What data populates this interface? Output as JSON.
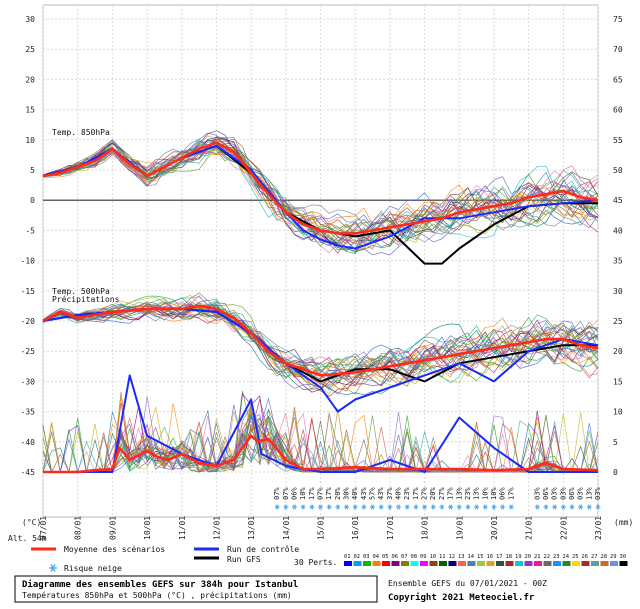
{
  "chart_data": [
    {
      "type": "line",
      "title": "Diagramme des ensembles GEFS sur 384h pour Istanbul",
      "subtitle": "Températures 850hPa et 500hPa (°C) , précipitations (mm)",
      "run": "Ensemble GEFS du 07/01/2021 - 00Z",
      "copyright": "Copyright 2021 Meteociel.fr",
      "left_axis": {
        "label": "(°C)",
        "ticks": [
          30,
          25,
          20,
          15,
          10,
          5,
          0,
          -5,
          -10,
          -15,
          -20,
          -25,
          -30,
          -35,
          -40,
          -45
        ],
        "range": [
          -45,
          30
        ]
      },
      "right_axis": {
        "label": "(mm)",
        "ticks": [
          75,
          70,
          65,
          60,
          55,
          50,
          45,
          40,
          35,
          30,
          25,
          20,
          15,
          10,
          5,
          0
        ],
        "range": [
          0,
          75
        ]
      },
      "x_ticks": [
        "07/01",
        "08/01",
        "09/01",
        "10/01",
        "11/01",
        "12/01",
        "13/01",
        "14/01",
        "15/01",
        "16/01",
        "17/01",
        "18/01",
        "19/01",
        "20/01",
        "21/01",
        "22/01",
        "23/01"
      ],
      "altitude": "Alt. 54m",
      "panel_labels": {
        "t850": "Temp. 850hPa",
        "t500": "Temp. 500hPa",
        "precip": "Précipitations"
      },
      "legend": {
        "mean": "Moyenne des scénarios",
        "control": "Run de contrôle",
        "gfs": "Run GFS",
        "perts": "30 Perts.",
        "snow": "Risque neige",
        "member_labels": [
          "01",
          "02",
          "03",
          "04",
          "05",
          "06",
          "07",
          "08",
          "09",
          "10",
          "11",
          "12",
          "13",
          "14",
          "15",
          "16",
          "17",
          "18",
          "19",
          "20",
          "21",
          "22",
          "23",
          "24",
          "25",
          "26",
          "27",
          "28",
          "29",
          "30"
        ]
      },
      "colors": {
        "mean": "#ff2a1a",
        "control": "#1a2aff",
        "gfs": "#000000",
        "snow": "#4aa8e8",
        "members": [
          "#2ea02e",
          "#1f77b4",
          "#ff7f0e",
          "#8c564b",
          "#17becf",
          "#e377c2",
          "#bcbd22",
          "#9467bd",
          "#7f7f7f",
          "#d62728",
          "#2ca02c",
          "#9e6b2f",
          "#6b8e23",
          "#4682b4",
          "#c71585",
          "#ff8c00",
          "#008080",
          "#800080",
          "#556b2f",
          "#b8860b",
          "#483d8b",
          "#20b2aa",
          "#cd5c5c",
          "#6a5acd",
          "#3cb371",
          "#daa520",
          "#4169e1",
          "#a0522d",
          "#708090",
          "#db7093"
        ]
      },
      "series": [
        {
          "name": "Moyenne des scénarios",
          "panel": "t850",
          "x": [
            0,
            0.5,
            1,
            1.5,
            2,
            2.5,
            3,
            3.5,
            4,
            4.5,
            5,
            5.5,
            6,
            6.5,
            7,
            7.5,
            8,
            8.5,
            9,
            9.5,
            10,
            10.5,
            11,
            11.5,
            12,
            12.5,
            13,
            13.5,
            14,
            14.5,
            15,
            15.5,
            16
          ],
          "values": [
            4,
            4.5,
            5.5,
            6.5,
            8.5,
            6,
            4,
            5.5,
            7,
            8.5,
            9.5,
            8,
            4.5,
            1,
            -2,
            -4,
            -5,
            -5.5,
            -5.5,
            -5,
            -4.5,
            -4,
            -3.5,
            -3,
            -2,
            -1.5,
            -1,
            -0.5,
            0.5,
            1,
            1.5,
            0.5,
            0
          ]
        },
        {
          "name": "Run de contrôle",
          "panel": "t850",
          "x": [
            0,
            1,
            2,
            3,
            4,
            5,
            6,
            7,
            7.5,
            8,
            8.5,
            9,
            10,
            11,
            12,
            13,
            14,
            15,
            16
          ],
          "values": [
            4,
            5.5,
            8.5,
            4,
            7,
            9,
            5,
            -2,
            -5,
            -6.5,
            -7.5,
            -8,
            -6,
            -3,
            -3,
            -2,
            -1,
            -0.5,
            0
          ]
        },
        {
          "name": "Run GFS",
          "panel": "t850",
          "x": [
            0,
            1,
            2,
            3,
            4,
            5,
            6,
            7,
            8,
            9,
            10,
            11,
            11.5,
            12,
            13,
            14,
            15,
            16
          ],
          "values": [
            4,
            5.5,
            8.5,
            4,
            7,
            9,
            4.5,
            -2,
            -5,
            -6,
            -5,
            -10.5,
            -10.5,
            -8,
            -4,
            -1,
            -0.5,
            -0.5
          ]
        },
        {
          "name": "Moyenne des scénarios",
          "panel": "t500",
          "x": [
            0,
            0.5,
            1,
            1.5,
            2,
            3,
            4,
            4.5,
            5,
            5.5,
            6,
            6.5,
            7,
            7.5,
            8,
            9,
            10,
            11,
            12,
            13,
            14,
            14.5,
            15,
            15.5,
            16
          ],
          "values": [
            -20,
            -18.5,
            -19.5,
            -19,
            -18.5,
            -18,
            -18,
            -17.5,
            -18,
            -19.5,
            -22,
            -25,
            -27,
            -28,
            -29,
            -28.5,
            -27.5,
            -26.5,
            -25.5,
            -24.5,
            -23.5,
            -23,
            -23,
            -24,
            -24.5
          ]
        },
        {
          "name": "Run de contrôle",
          "panel": "t500",
          "x": [
            0,
            1,
            2,
            3,
            4,
            5,
            6,
            7,
            8,
            8.5,
            9,
            10,
            11,
            12,
            13,
            14,
            15,
            16
          ],
          "values": [
            -20,
            -19,
            -18.5,
            -18,
            -18,
            -18.5,
            -22,
            -27,
            -31,
            -35,
            -33,
            -31,
            -29,
            -27,
            -30,
            -25,
            -23,
            -24
          ]
        },
        {
          "name": "Run GFS",
          "panel": "t500",
          "x": [
            0,
            1,
            2,
            3,
            4,
            5,
            6,
            7,
            8,
            9,
            10,
            11,
            12,
            13,
            14,
            15,
            16
          ],
          "values": [
            -20,
            -19,
            -18.5,
            -18,
            -18,
            -18.5,
            -22,
            -27,
            -30,
            -28,
            -28,
            -30,
            -27,
            -26,
            -25,
            -24,
            -24
          ]
        },
        {
          "name": "Moyenne des scénarios",
          "panel": "precip",
          "x": [
            0,
            1,
            1.5,
            2,
            2.2,
            2.5,
            3,
            3.3,
            3.6,
            4,
            4.5,
            5,
            5.5,
            6,
            6.2,
            6.5,
            7,
            7.5,
            8,
            9,
            10,
            11,
            12,
            13,
            14,
            14.5,
            15,
            16
          ],
          "values": [
            0,
            0,
            0.3,
            0.5,
            4,
            2,
            3.5,
            2.5,
            2,
            3,
            1.5,
            1,
            2,
            6,
            5,
            5.5,
            2,
            0.5,
            0.5,
            0.8,
            0.5,
            0.5,
            0.5,
            0.3,
            0.5,
            1.5,
            0.5,
            0.3
          ]
        },
        {
          "name": "Run de contrôle",
          "panel": "precip",
          "x": [
            0,
            2,
            2.5,
            3,
            4,
            5,
            6,
            6.3,
            7,
            8,
            9,
            10,
            11,
            12,
            13,
            14,
            15,
            16
          ],
          "values": [
            0,
            0,
            16,
            6,
            3,
            1,
            12,
            3,
            1,
            0,
            0,
            2,
            0,
            9,
            4,
            0,
            0,
            0
          ]
        }
      ],
      "snow_risk": {
        "group1_days": [
          "07",
          "07",
          "06",
          "10",
          "17",
          "07",
          "17",
          "20",
          "30",
          "40",
          "43",
          "57",
          "43",
          "37",
          "40",
          "23",
          "17",
          "27",
          "20",
          "27",
          "17",
          "13",
          "23",
          "13",
          "10",
          "10",
          "06",
          "17"
        ],
        "group2_days": [
          "03",
          "06",
          "03",
          "03",
          "06",
          "03",
          "13",
          "03"
        ]
      },
      "member_colors_bar": [
        "#0000ff",
        "#00a0ff",
        "#00c000",
        "#ff8000",
        "#ff0000",
        "#800080",
        "#808000",
        "#00ffff",
        "#ff00ff",
        "#8b4513",
        "#006400",
        "#000080",
        "#ff6347",
        "#4682b4",
        "#9acd32",
        "#daa520",
        "#2f4f4f",
        "#b22222",
        "#00ced1",
        "#9932cc",
        "#ff1493",
        "#696969",
        "#1e90ff",
        "#228b22",
        "#ffd700",
        "#a52a2a",
        "#5f9ea0",
        "#d2691e",
        "#6495ed",
        "#000000"
      ]
    }
  ]
}
